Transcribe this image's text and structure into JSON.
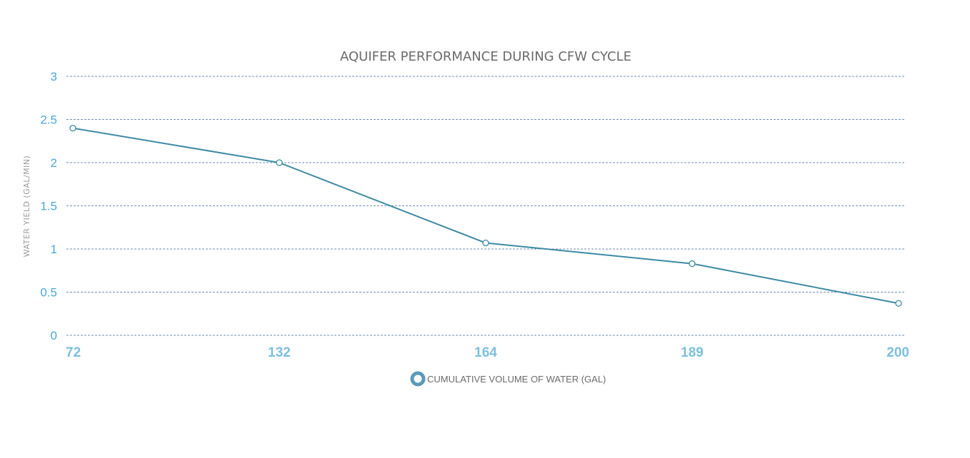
{
  "chart_data": {
    "type": "line",
    "title": "AQUIFER PERFORMANCE DURING CFW CYCLE",
    "xlabel": "CUMULATIVE VOLUME OF WATER (GAL)",
    "ylabel": "WATER YIELD (GAL/MIN)",
    "categories": [
      "72",
      "132",
      "164",
      "189",
      "200"
    ],
    "series": [
      {
        "name": "CUMULATIVE VOLUME OF WATER (GAL)",
        "values": [
          2.4,
          2.0,
          1.07,
          0.83,
          0.37
        ]
      }
    ],
    "yticks": [
      "0",
      "0.5",
      "1",
      "1.5",
      "2",
      "2.5",
      "3"
    ],
    "ylim": [
      0,
      3
    ],
    "grid": true,
    "legend_position": "bottom-center",
    "colors": {
      "line": "#3d8aa3",
      "grid": "#6f8fb5",
      "ytick": "#4aa8d6",
      "xtick": "#7cc0dd",
      "legend_marker": "#5b9ab8"
    }
  }
}
